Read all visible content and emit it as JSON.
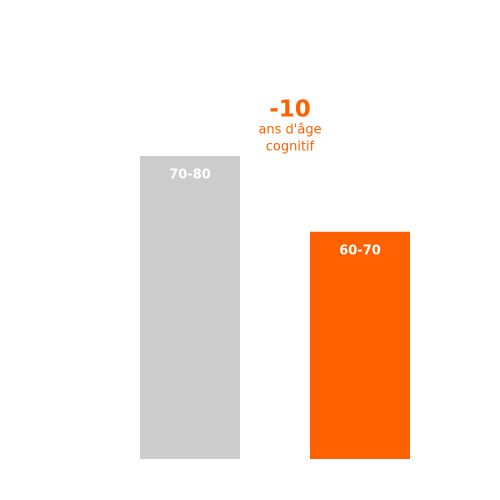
{
  "chart_data": {
    "type": "bar",
    "categories": [
      "70-80",
      "60-70"
    ],
    "values": [
      100,
      75
    ],
    "colors": [
      "#cccccc",
      "#ff6000"
    ],
    "ylim": [
      0,
      100
    ],
    "annotation": "-10",
    "annotation_lines": [
      "ans d'âge",
      "cognitif"
    ],
    "annotation_color": "#ff6000"
  }
}
